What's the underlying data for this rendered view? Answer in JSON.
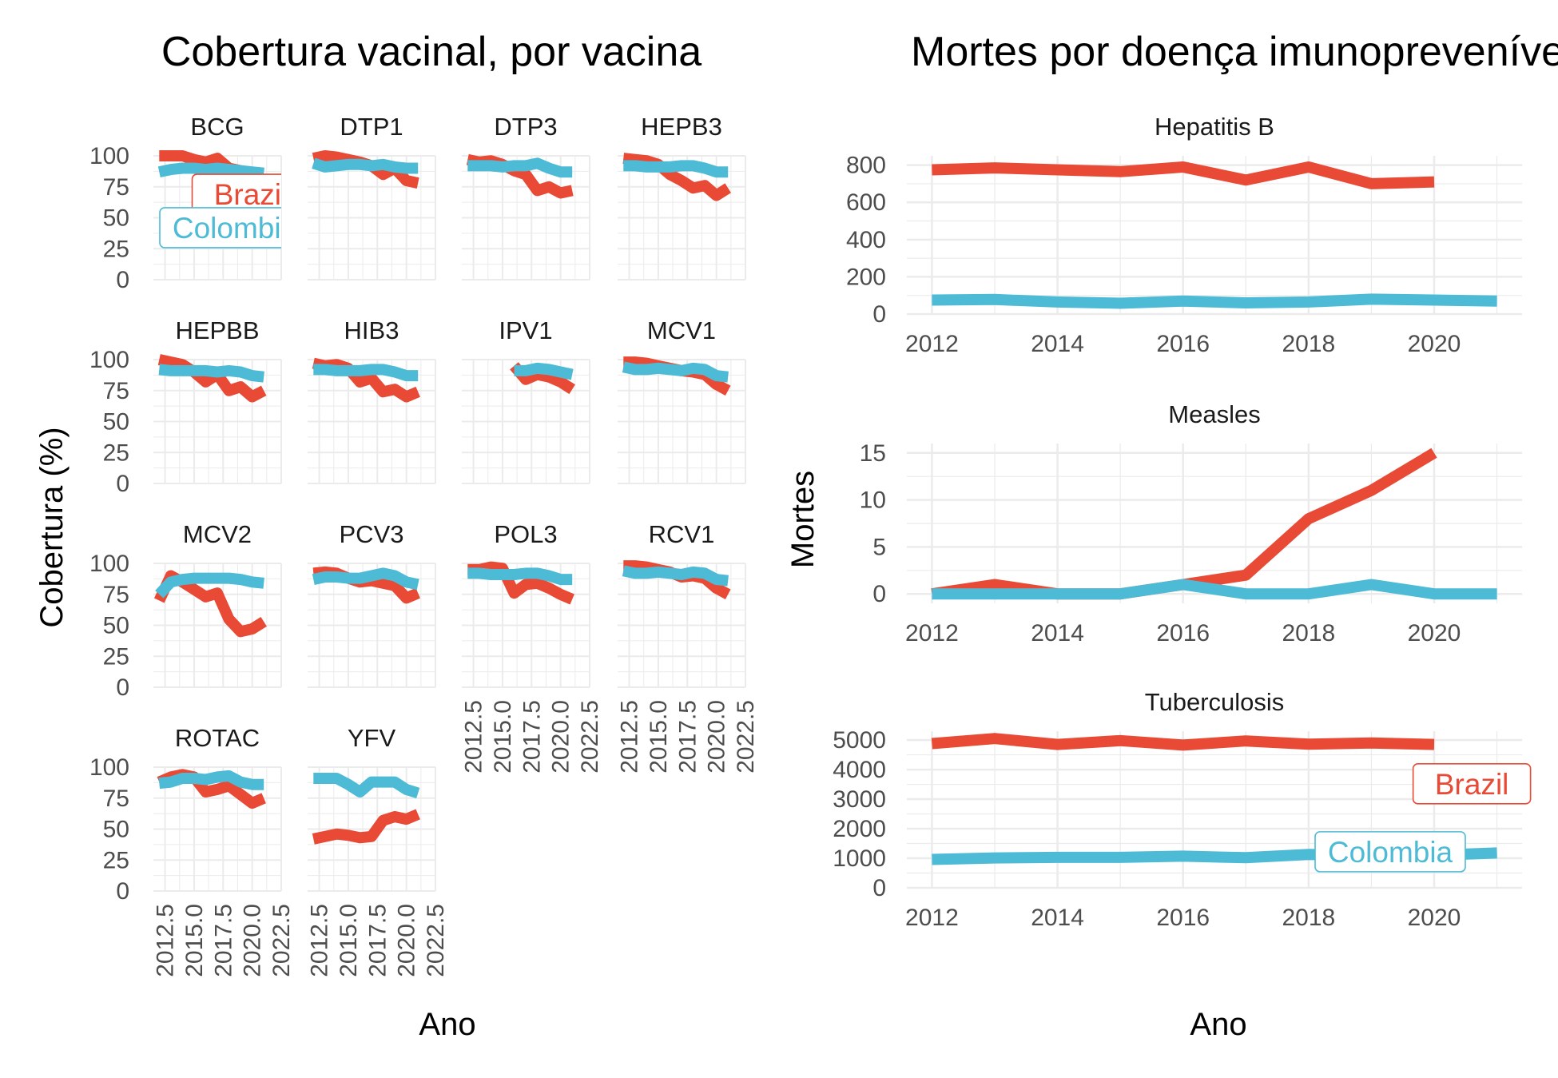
{
  "left_title": "Cobertura vacinal, por vacina",
  "right_title": "Mortes por doença imunopreveníveis",
  "left_ylabel": "Cobertura (%)",
  "left_xlabel": "Ano",
  "right_ylabel": "Mortes",
  "right_xlabel": "Ano",
  "colors": {
    "Brazil": "#e84a35",
    "Colombia": "#4dbbd5",
    "other": "#e8e8e8",
    "grid": "#ebebeb"
  },
  "chart_data": [
    {
      "type": "line",
      "facets": "vaccine",
      "x": [
        2012,
        2013,
        2014,
        2015,
        2016,
        2017,
        2018,
        2019,
        2020,
        2021
      ],
      "x_ticks": [
        "2012.5",
        "2015.0",
        "2017.5",
        "2020.0",
        "2022.5"
      ],
      "y_ticks": [
        "0",
        "25",
        "50",
        "75",
        "100"
      ],
      "ylim": [
        0,
        100
      ],
      "xlim": [
        2011.5,
        2022.5
      ],
      "panels": [
        {
          "name": "BCG",
          "Brazil": [
            100,
            100,
            100,
            97,
            95,
            98,
            90,
            88,
            80,
            78
          ],
          "Colombia": [
            87,
            89,
            90,
            90,
            89,
            90,
            89,
            88,
            87,
            86
          ]
        },
        {
          "name": "DTP1",
          "Brazil": [
            98,
            100,
            99,
            97,
            95,
            92,
            85,
            90,
            80,
            78
          ],
          "Colombia": [
            94,
            91,
            92,
            93,
            93,
            92,
            93,
            91,
            90,
            90
          ]
        },
        {
          "name": "DTP3",
          "Brazil": [
            97,
            95,
            96,
            93,
            88,
            85,
            72,
            75,
            70,
            72
          ],
          "Colombia": [
            92,
            92,
            92,
            91,
            92,
            92,
            94,
            90,
            87,
            87
          ]
        },
        {
          "name": "HEPB3",
          "Brazil": [
            98,
            97,
            96,
            93,
            85,
            80,
            74,
            76,
            68,
            74
          ],
          "Colombia": [
            92,
            92,
            91,
            91,
            91,
            92,
            92,
            90,
            87,
            87
          ]
        },
        {
          "name": "HEPBB",
          "Brazil": [
            100,
            98,
            96,
            90,
            82,
            88,
            75,
            78,
            70,
            75
          ],
          "Colombia": [
            92,
            91,
            91,
            91,
            91,
            90,
            91,
            90,
            87,
            86
          ]
        },
        {
          "name": "HIB3",
          "Brazil": [
            97,
            95,
            96,
            93,
            82,
            85,
            74,
            76,
            70,
            74
          ],
          "Colombia": [
            92,
            92,
            91,
            91,
            91,
            92,
            92,
            90,
            87,
            87
          ]
        },
        {
          "name": "IPV1",
          "Brazil": [
            null,
            null,
            null,
            null,
            95,
            84,
            88,
            86,
            82,
            76
          ],
          "Colombia": [
            null,
            null,
            null,
            null,
            91,
            91,
            93,
            92,
            90,
            88
          ]
        },
        {
          "name": "MCV1",
          "Brazil": [
            98,
            98,
            97,
            95,
            93,
            91,
            90,
            88,
            80,
            75
          ],
          "Colombia": [
            94,
            92,
            92,
            93,
            92,
            91,
            93,
            92,
            87,
            86
          ]
        },
        {
          "name": "MCV2",
          "Brazil": [
            70,
            90,
            85,
            79,
            73,
            76,
            55,
            45,
            47,
            53
          ],
          "Colombia": [
            75,
            85,
            87,
            88,
            88,
            88,
            88,
            87,
            85,
            84
          ]
        },
        {
          "name": "PCV3",
          "Brazil": [
            92,
            93,
            92,
            88,
            85,
            86,
            84,
            82,
            72,
            76
          ],
          "Colombia": [
            87,
            89,
            89,
            88,
            88,
            90,
            92,
            90,
            85,
            83
          ]
        },
        {
          "name": "POL3",
          "Brazil": [
            95,
            95,
            97,
            96,
            76,
            83,
            84,
            80,
            75,
            71
          ],
          "Colombia": [
            92,
            92,
            91,
            91,
            91,
            92,
            92,
            90,
            87,
            87
          ]
        },
        {
          "name": "RCV1",
          "Brazil": [
            98,
            98,
            97,
            95,
            93,
            89,
            90,
            88,
            80,
            75
          ],
          "Colombia": [
            94,
            92,
            92,
            93,
            92,
            91,
            93,
            92,
            87,
            86
          ]
        },
        {
          "name": "ROTAC",
          "Brazil": [
            88,
            92,
            94,
            92,
            80,
            82,
            85,
            78,
            71,
            75
          ],
          "Colombia": [
            87,
            88,
            91,
            91,
            90,
            92,
            93,
            88,
            86,
            86
          ]
        },
        {
          "name": "YFV",
          "Brazil": [
            42,
            44,
            46,
            45,
            43,
            44,
            57,
            60,
            58,
            62
          ],
          "Colombia": [
            91,
            91,
            91,
            86,
            80,
            88,
            88,
            88,
            82,
            79
          ]
        }
      ],
      "labels": [
        {
          "panel": "BCG",
          "text": "Brazil",
          "series": "Brazil"
        },
        {
          "panel": "BCG",
          "text": "Colombia",
          "series": "Colombia"
        }
      ]
    },
    {
      "type": "line",
      "facets": "disease",
      "x": [
        2012,
        2013,
        2014,
        2015,
        2016,
        2017,
        2018,
        2019,
        2020,
        2021
      ],
      "x_ticks": [
        "2012",
        "2014",
        "2016",
        "2018",
        "2020"
      ],
      "panels": [
        {
          "name": "Hepatitis B",
          "ylim": [
            0,
            850
          ],
          "y_ticks": [
            "0",
            "200",
            "400",
            "600",
            "800"
          ],
          "Brazil": [
            775,
            785,
            775,
            765,
            790,
            720,
            790,
            700,
            710,
            null
          ],
          "Colombia": [
            75,
            78,
            65,
            58,
            70,
            60,
            65,
            80,
            75,
            70
          ]
        },
        {
          "name": "Measles",
          "ylim": [
            -1,
            16
          ],
          "y_ticks": [
            "0",
            "5",
            "10",
            "15"
          ],
          "Brazil": [
            0,
            1,
            0,
            0,
            1,
            2,
            8,
            11,
            15,
            null
          ],
          "Colombia": [
            0,
            0,
            0,
            0,
            1,
            0,
            0,
            1,
            0,
            0
          ]
        },
        {
          "name": "Tuberculosis",
          "ylim": [
            0,
            5300
          ],
          "y_ticks": [
            "0",
            "1000",
            "2000",
            "3000",
            "4000",
            "5000"
          ],
          "Brazil": [
            4880,
            5050,
            4850,
            4980,
            4830,
            4970,
            4860,
            4900,
            4850,
            null
          ],
          "Colombia": [
            960,
            1010,
            1030,
            1030,
            1070,
            1020,
            1130,
            1100,
            1100,
            1180
          ]
        }
      ],
      "labels": [
        {
          "panel": "Tuberculosis",
          "text": "Brazil",
          "series": "Brazil"
        },
        {
          "panel": "Tuberculosis",
          "text": "Colombia",
          "series": "Colombia"
        }
      ]
    }
  ]
}
